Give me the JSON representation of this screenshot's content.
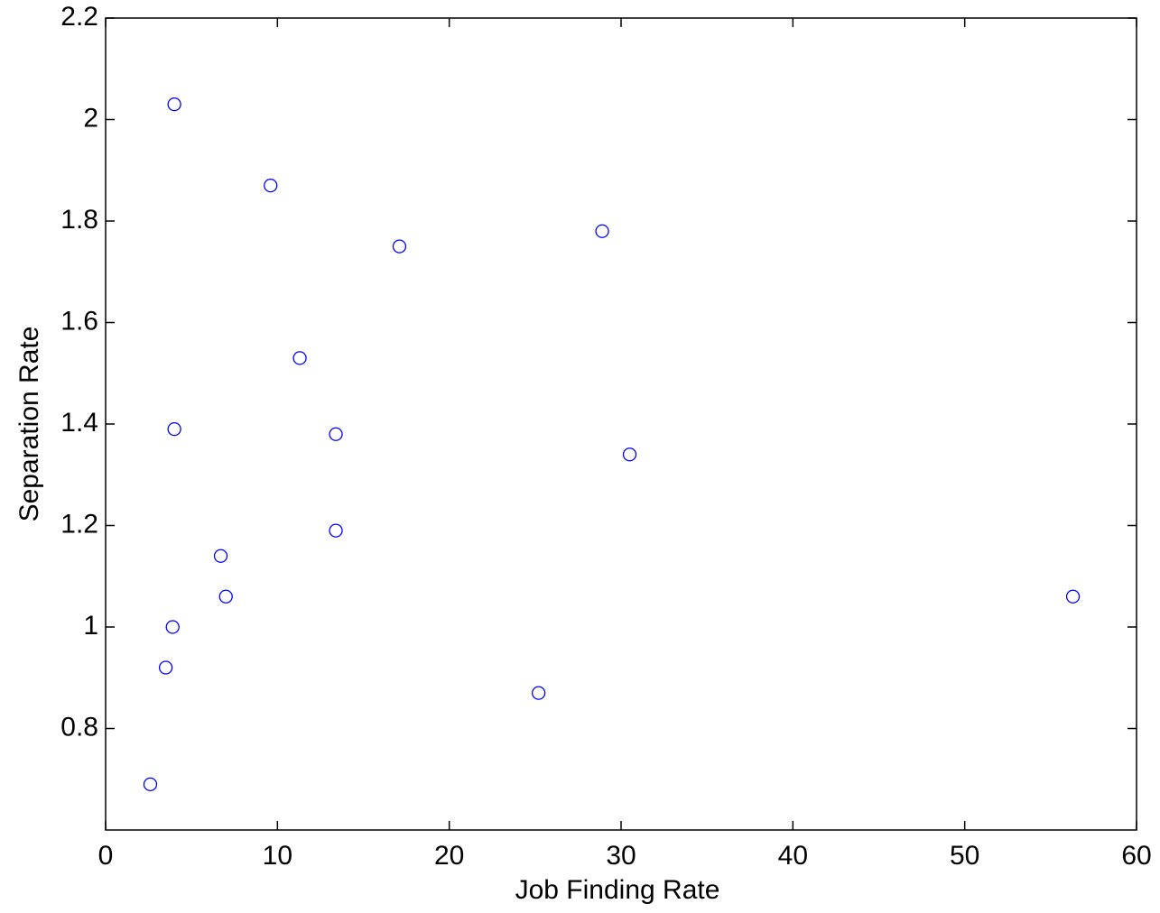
{
  "chart_data": {
    "type": "scatter",
    "x_label": "Job Finding Rate",
    "y_label": "Separation Rate",
    "series": [
      {
        "color": "#0000ff",
        "x": [
          4.0,
          9.6,
          17.1,
          28.9,
          11.3,
          4.0,
          13.4,
          30.5,
          13.4,
          6.7,
          7.0,
          56.3,
          3.9,
          3.5,
          25.2,
          2.6
        ],
        "values": [
          2.03,
          1.87,
          1.75,
          1.78,
          1.53,
          1.39,
          1.38,
          1.34,
          1.19,
          1.14,
          1.06,
          1.06,
          1.0,
          0.92,
          0.87,
          0.69
        ]
      }
    ],
    "xlim": [
      0,
      60
    ],
    "xticks": [
      0,
      10,
      20,
      30,
      40,
      50,
      60
    ],
    "ylim": [
      0.6,
      2.2
    ],
    "yticks": [
      0.8,
      1,
      1.2,
      1.4,
      1.6,
      1.8,
      2,
      2.2
    ],
    "grid": false
  }
}
